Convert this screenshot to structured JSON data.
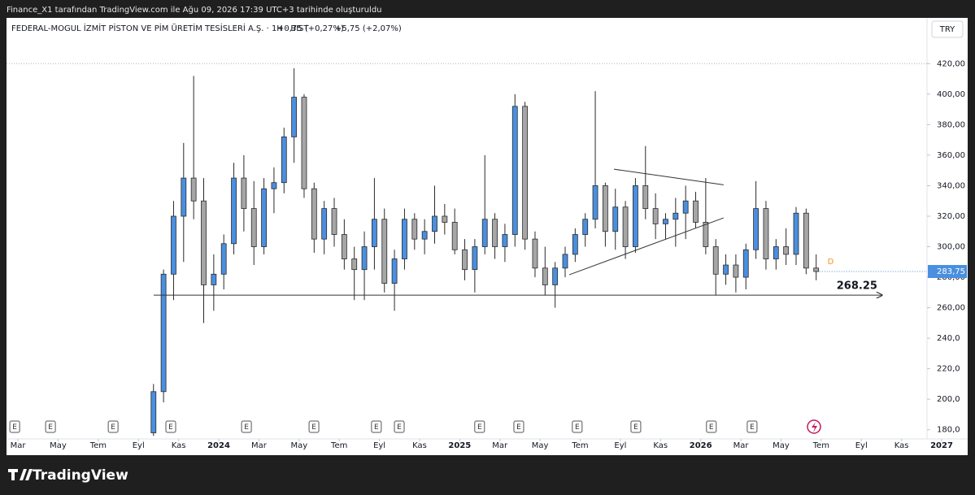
{
  "header": {
    "credit": "Finance_X1 tarafından TradingView.com ile Ağu 09, 2026 17:39 UTC+3 tarihinde oluşturuldu",
    "brand": "TradingView"
  },
  "chart_data": {
    "type": "candlestick",
    "title": "FEDERAL-MOGUL İZMİT PİSTON VE PİM ÜRETİM TESİSLERİ A.Ş. · 1H · BIST",
    "change_1": "+0,75 (+0,27%)",
    "change_2": "+5,75 (+2,07%)",
    "currency": "TRY",
    "up_color": "#4a8fe0",
    "down_color": "#a6a6a6",
    "outline_color": "#2a2a2a",
    "xlim": [
      1.43,
      47.27
    ],
    "xticks": [
      {
        "value": 2,
        "label": "Mar"
      },
      {
        "value": 4,
        "label": "May"
      },
      {
        "value": 6,
        "label": "Tem"
      },
      {
        "value": 8,
        "label": "Eyl"
      },
      {
        "value": 10,
        "label": "Kas"
      },
      {
        "value": 12,
        "label": "2024"
      },
      {
        "value": 14,
        "label": "Mar"
      },
      {
        "value": 16,
        "label": "May"
      },
      {
        "value": 18,
        "label": "Tem"
      },
      {
        "value": 20,
        "label": "Eyl"
      },
      {
        "value": 22,
        "label": "Kas"
      },
      {
        "value": 24,
        "label": "2025"
      },
      {
        "value": 26,
        "label": "Mar"
      },
      {
        "value": 28,
        "label": "May"
      },
      {
        "value": 30,
        "label": "Tem"
      },
      {
        "value": 32,
        "label": "Eyl"
      },
      {
        "value": 34,
        "label": "Kas"
      },
      {
        "value": 36,
        "label": "2026"
      },
      {
        "value": 38,
        "label": "Mar"
      },
      {
        "value": 40,
        "label": "May"
      },
      {
        "value": 42,
        "label": "Tem"
      },
      {
        "value": 44,
        "label": "Eyl"
      },
      {
        "value": 46,
        "label": "Kas"
      },
      {
        "value": 48,
        "label": "2027"
      }
    ],
    "ylim": [
      174,
      450
    ],
    "yticks": [
      {
        "value": 180,
        "label": "180,0"
      },
      {
        "value": 200,
        "label": "200,0"
      },
      {
        "value": 220,
        "label": "220,0"
      },
      {
        "value": 240,
        "label": "240,0"
      },
      {
        "value": 260,
        "label": "260,00"
      },
      {
        "value": 280,
        "label": "280,00"
      },
      {
        "value": 300,
        "label": "300,00"
      },
      {
        "value": 320,
        "label": "320,00"
      },
      {
        "value": 340,
        "label": "340,00"
      },
      {
        "value": 360,
        "label": "360,00"
      },
      {
        "value": 380,
        "label": "380,00"
      },
      {
        "value": 400,
        "label": "400,00"
      },
      {
        "value": 420,
        "label": "420,00"
      }
    ],
    "last_price": {
      "value": 283.75,
      "label": "283,75"
    },
    "marker_label": "D",
    "candles": {
      "x": [
        8.75,
        9.25,
        9.75,
        10.25,
        10.75,
        11.25,
        11.75,
        12.25,
        12.75,
        13.25,
        13.75,
        14.25,
        14.75,
        15.25,
        15.75,
        16.25,
        16.75,
        17.25,
        17.75,
        18.25,
        18.75,
        19.25,
        19.75,
        20.25,
        20.75,
        21.25,
        21.75,
        22.25,
        22.75,
        23.25,
        23.75,
        24.25,
        24.75,
        25.25,
        25.75,
        26.25,
        26.75,
        27.25,
        27.75,
        28.25,
        28.75,
        29.25,
        29.75,
        30.25,
        30.75,
        31.25,
        31.75,
        32.25,
        32.75,
        33.25,
        33.75,
        34.25,
        34.75,
        35.25,
        35.75,
        36.25,
        36.75,
        37.25,
        37.75,
        38.25,
        38.75,
        39.25,
        39.75,
        40.25,
        40.75,
        41.25,
        41.75
      ],
      "open": [
        178,
        205,
        282,
        320,
        345,
        330,
        275,
        282,
        302,
        345,
        325,
        300,
        338,
        342,
        372,
        398,
        338,
        305,
        325,
        308,
        292,
        285,
        300,
        318,
        276,
        292,
        318,
        305,
        310,
        320,
        316,
        298,
        285,
        300,
        318,
        300,
        308,
        392,
        305,
        286,
        275,
        286,
        295,
        308,
        318,
        340,
        310,
        326,
        300,
        340,
        325,
        315,
        318,
        322,
        330,
        316,
        300,
        282,
        288,
        280,
        298,
        325,
        292,
        300,
        295,
        322,
        286
      ],
      "high": [
        210,
        285,
        330,
        368,
        412,
        345,
        295,
        308,
        355,
        360,
        343,
        345,
        352,
        378,
        417,
        400,
        342,
        330,
        332,
        318,
        300,
        310,
        345,
        325,
        298,
        325,
        322,
        318,
        340,
        328,
        325,
        305,
        305,
        360,
        322,
        315,
        400,
        395,
        310,
        300,
        290,
        300,
        312,
        322,
        402,
        342,
        338,
        330,
        345,
        366,
        335,
        322,
        332,
        340,
        336,
        345,
        305,
        295,
        295,
        302,
        343,
        330,
        305,
        312,
        326,
        325,
        295
      ],
      "low": [
        176,
        198,
        265,
        290,
        318,
        250,
        258,
        272,
        295,
        310,
        288,
        295,
        322,
        335,
        355,
        332,
        296,
        295,
        300,
        285,
        265,
        265,
        285,
        270,
        258,
        285,
        298,
        295,
        302,
        308,
        295,
        278,
        270,
        295,
        292,
        290,
        300,
        298,
        280,
        268,
        260,
        280,
        290,
        300,
        312,
        300,
        298,
        292,
        296,
        318,
        305,
        305,
        300,
        305,
        312,
        295,
        268,
        275,
        270,
        272,
        292,
        285,
        285,
        288,
        288,
        282,
        278
      ],
      "close": [
        205,
        282,
        320,
        345,
        330,
        275,
        282,
        302,
        345,
        325,
        300,
        338,
        342,
        372,
        398,
        338,
        305,
        325,
        308,
        292,
        285,
        300,
        318,
        276,
        292,
        318,
        305,
        310,
        320,
        316,
        298,
        285,
        300,
        318,
        300,
        308,
        392,
        305,
        286,
        275,
        286,
        295,
        308,
        318,
        340,
        310,
        326,
        300,
        340,
        325,
        315,
        318,
        322,
        330,
        316,
        300,
        282,
        288,
        280,
        298,
        325,
        292,
        300,
        295,
        322,
        286,
        283.75
      ]
    },
    "level_line": {
      "x": [
        8.76,
        45.04
      ],
      "y": 268.25,
      "label": "268.25"
    },
    "trendlines": [
      {
        "x": [
          31.68,
          37.14
        ],
        "y": [
          350.8,
          340.6
        ]
      },
      {
        "x": [
          29.45,
          37.14
        ],
        "y": [
          281.6,
          318.9
        ]
      }
    ],
    "event_label": "E",
    "events": [
      1.84,
      3.62,
      6.74,
      9.61,
      13.38,
      16.74,
      19.85,
      20.99,
      24.99,
      26.94,
      29.85,
      32.77,
      36.53,
      38.56
    ]
  }
}
